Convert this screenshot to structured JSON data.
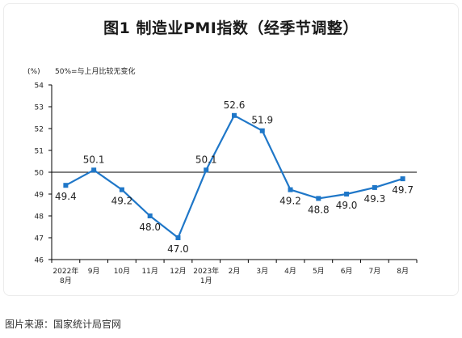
{
  "page": {
    "source": "图片来源：国家统计局官网"
  },
  "chart_data": {
    "type": "line",
    "title": "图1  制造业PMI指数（经季节调整）",
    "ylabel": "(%)",
    "annotation": "50%=与上月比较无变化",
    "ylim": [
      46,
      54
    ],
    "yticks": [
      46,
      47,
      48,
      49,
      50,
      51,
      52,
      53,
      54
    ],
    "reference_line": 50,
    "categories": [
      [
        "2022年",
        "8月"
      ],
      [
        "9月"
      ],
      [
        "10月"
      ],
      [
        "11月"
      ],
      [
        "12月"
      ],
      [
        "2023年",
        "1月"
      ],
      [
        "2月"
      ],
      [
        "3月"
      ],
      [
        "4月"
      ],
      [
        "5月"
      ],
      [
        "6月"
      ],
      [
        "7月"
      ],
      [
        "8月"
      ]
    ],
    "series": [
      {
        "color": "#1f77c8",
        "values": [
          49.4,
          50.1,
          49.2,
          48.0,
          47.0,
          50.1,
          52.6,
          51.9,
          49.2,
          48.8,
          49.0,
          49.3,
          49.7
        ],
        "labels": [
          "49.4",
          "50.1",
          "49.2",
          "48.0",
          "47.0",
          "50.1",
          "52.6",
          "51.9",
          "49.2",
          "48.8",
          "49.0",
          "49.3",
          "49.7"
        ]
      }
    ],
    "grid": false
  }
}
